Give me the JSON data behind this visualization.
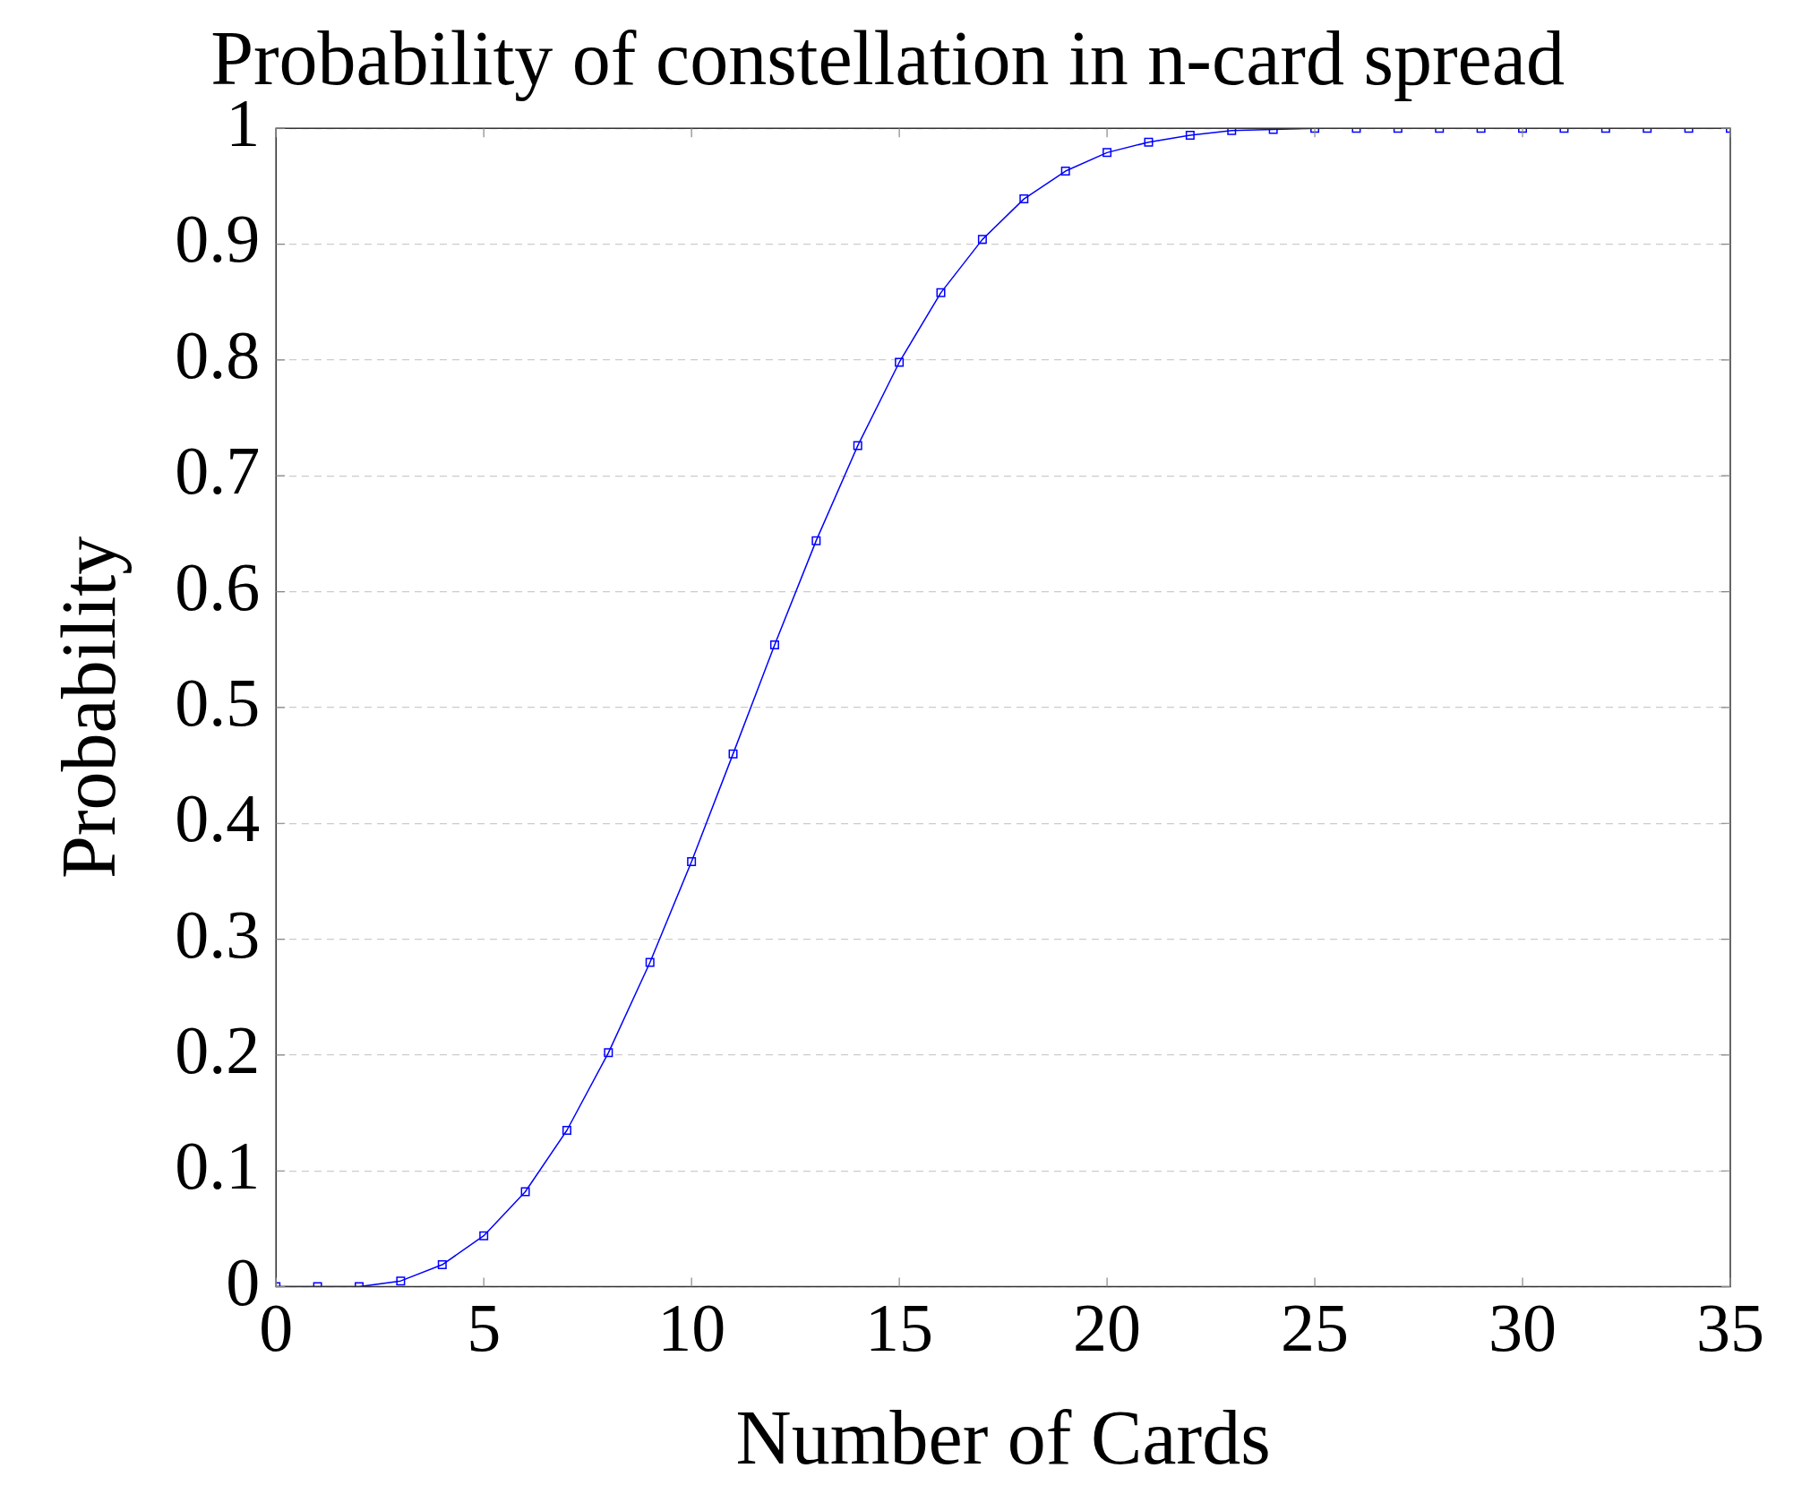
{
  "chart_data": {
    "type": "line",
    "title": "Probability of constellation in n-card spread",
    "xlabel": "Number of Cards",
    "ylabel": "Probability",
    "x": [
      0,
      1,
      2,
      3,
      4,
      5,
      6,
      7,
      8,
      9,
      10,
      11,
      12,
      13,
      14,
      15,
      16,
      17,
      18,
      19,
      20,
      21,
      22,
      23,
      24,
      25,
      26,
      27,
      28,
      29,
      30,
      31,
      32,
      33,
      34,
      35
    ],
    "series": [
      {
        "color": "#0000ff",
        "values": [
          0,
          0,
          0,
          0.005,
          0.019,
          0.044,
          0.082,
          0.135,
          0.202,
          0.28,
          0.367,
          0.46,
          0.554,
          0.644,
          0.726,
          0.798,
          0.858,
          0.904,
          0.939,
          0.963,
          0.979,
          0.988,
          0.994,
          0.998,
          0.999,
          1,
          1,
          1,
          1,
          1,
          1,
          1,
          1,
          1,
          1,
          1
        ]
      }
    ],
    "xlim": [
      0,
      35
    ],
    "xticks": [
      0,
      5,
      10,
      15,
      20,
      25,
      30,
      35
    ],
    "ylim": [
      0,
      1
    ],
    "yticks": [
      0,
      0.1,
      0.2,
      0.3,
      0.4,
      0.5,
      0.6,
      0.7,
      0.8,
      0.9,
      1
    ],
    "grid": "y",
    "legend": false,
    "marker": "square",
    "line_style": "solid"
  }
}
